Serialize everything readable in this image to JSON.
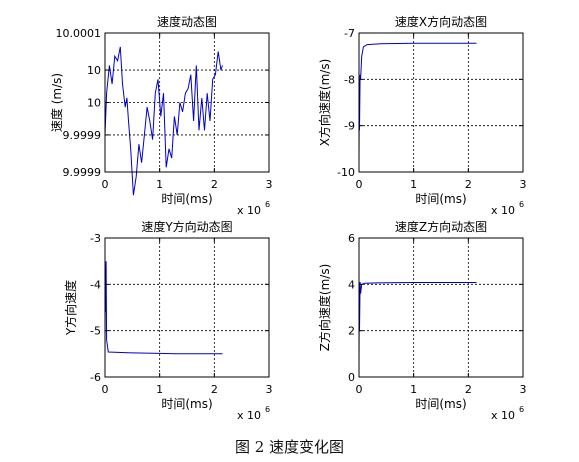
{
  "figure": {
    "caption": "图 2 速度变化图"
  },
  "chart_data": [
    {
      "type": "line",
      "title": "速度动态图",
      "xlabel": "时间(ms)",
      "ylabel": "速度 (m/s)",
      "x_exponent": "x 10",
      "x_exponent_power": "6",
      "xlim": [
        0,
        3
      ],
      "ylim": [
        9.99985,
        10.00015
      ],
      "xticks": [
        0,
        1,
        2,
        3
      ],
      "xtick_labels": [
        "0",
        "1",
        "2",
        "3"
      ],
      "yticks": [
        9.99985,
        9.99993,
        10.0,
        10.00007,
        10.00015
      ],
      "ytick_labels": [
        "9.9999",
        "9.9999",
        "10",
        "10",
        "10.0001"
      ],
      "grid": true,
      "series": [
        {
          "color": "#0000cc",
          "x": [
            0.0,
            0.03,
            0.08,
            0.13,
            0.18,
            0.23,
            0.28,
            0.32,
            0.37,
            0.4,
            0.43,
            0.47,
            0.52,
            0.57,
            0.62,
            0.67,
            0.72,
            0.77,
            0.82,
            0.87,
            0.92,
            0.97,
            1.02,
            1.07,
            1.12,
            1.17,
            1.22,
            1.27,
            1.32,
            1.37,
            1.42,
            1.47,
            1.52,
            1.57,
            1.62,
            1.67,
            1.72,
            1.77,
            1.82,
            1.87,
            1.92,
            1.97,
            2.02,
            2.07,
            2.12,
            2.15
          ],
          "y": [
            9.99993,
            10.00002,
            10.00008,
            10.00004,
            10.0001,
            10.00009,
            10.00012,
            10.00004,
            9.99999,
            10.00001,
            9.99996,
            9.9999,
            9.9998,
            9.99984,
            9.99991,
            9.99987,
            9.99993,
            9.99999,
            9.99996,
            9.99992,
            10.00002,
            10.00005,
            9.99997,
            10.00002,
            9.99986,
            9.9999,
            9.99988,
            9.99997,
            9.99993,
            10.0,
            9.99998,
            10.00002,
            10.00003,
            10.00006,
            9.99996,
            10.00008,
            9.99994,
            10.00001,
            9.99994,
            10.00002,
            9.99996,
            10.00005,
            10.00006,
            10.00011,
            10.00007,
            10.00008
          ]
        }
      ]
    },
    {
      "type": "line",
      "title": "速度X方向动态图",
      "xlabel": "时间(ms)",
      "ylabel": "X方向速度(m/s)",
      "x_exponent": "x 10",
      "x_exponent_power": "6",
      "xlim": [
        0,
        3
      ],
      "ylim": [
        -10,
        -7
      ],
      "xticks": [
        0,
        1,
        2,
        3
      ],
      "xtick_labels": [
        "0",
        "1",
        "2",
        "3"
      ],
      "yticks": [
        -10,
        -9,
        -8,
        -7
      ],
      "ytick_labels": [
        "-10",
        "-9",
        "-8",
        "-7"
      ],
      "grid": true,
      "series": [
        {
          "color": "#0000cc",
          "x": [
            0.0,
            0.005,
            0.01,
            0.02,
            0.03,
            0.05,
            0.08,
            0.15,
            0.4,
            1.0,
            1.5,
            2.15
          ],
          "y": [
            -9.7,
            -8.2,
            -9.1,
            -7.9,
            -8.0,
            -7.5,
            -7.3,
            -7.25,
            -7.23,
            -7.22,
            -7.22,
            -7.22
          ]
        }
      ]
    },
    {
      "type": "line",
      "title": "速度Y方向动态图",
      "xlabel": "时间(ms)",
      "ylabel": "Y方向速度",
      "x_exponent": "x 10",
      "x_exponent_power": "6",
      "xlim": [
        0,
        3
      ],
      "ylim": [
        -6,
        -3
      ],
      "xticks": [
        0,
        1,
        2,
        3
      ],
      "xtick_labels": [
        "0",
        "1",
        "2",
        "3"
      ],
      "yticks": [
        -6,
        -5,
        -4,
        -3
      ],
      "ytick_labels": [
        "-6",
        "-5",
        "-4",
        "-3"
      ],
      "grid": true,
      "series": [
        {
          "color": "#0000cc",
          "x": [
            0.0,
            0.005,
            0.01,
            0.02,
            0.03,
            0.06,
            0.5,
            1.0,
            1.3,
            2.15
          ],
          "y": [
            -5.5,
            -3.9,
            -4.6,
            -3.5,
            -5.2,
            -5.46,
            -5.48,
            -5.49,
            -5.5,
            -5.5
          ]
        }
      ]
    },
    {
      "type": "line",
      "title": "速度Z方向动态图",
      "xlabel": "时间(ms)",
      "ylabel": "Z方向速度(m/s)",
      "x_exponent": "x 10",
      "x_exponent_power": "6",
      "xlim": [
        0,
        3
      ],
      "ylim": [
        0,
        6
      ],
      "xticks": [
        0,
        1,
        2,
        3
      ],
      "xtick_labels": [
        "0",
        "1",
        "2",
        "3"
      ],
      "yticks": [
        0,
        2,
        4,
        6
      ],
      "ytick_labels": [
        "0",
        "2",
        "4",
        "6"
      ],
      "grid": true,
      "series": [
        {
          "color": "#0000cc",
          "x": [
            0.0,
            0.005,
            0.01,
            0.02,
            0.03,
            0.05,
            0.1,
            0.5,
            1.0,
            2.15
          ],
          "y": [
            0.5,
            3.8,
            2.0,
            4.1,
            3.6,
            4.0,
            4.05,
            4.07,
            4.08,
            4.08
          ]
        }
      ]
    }
  ]
}
